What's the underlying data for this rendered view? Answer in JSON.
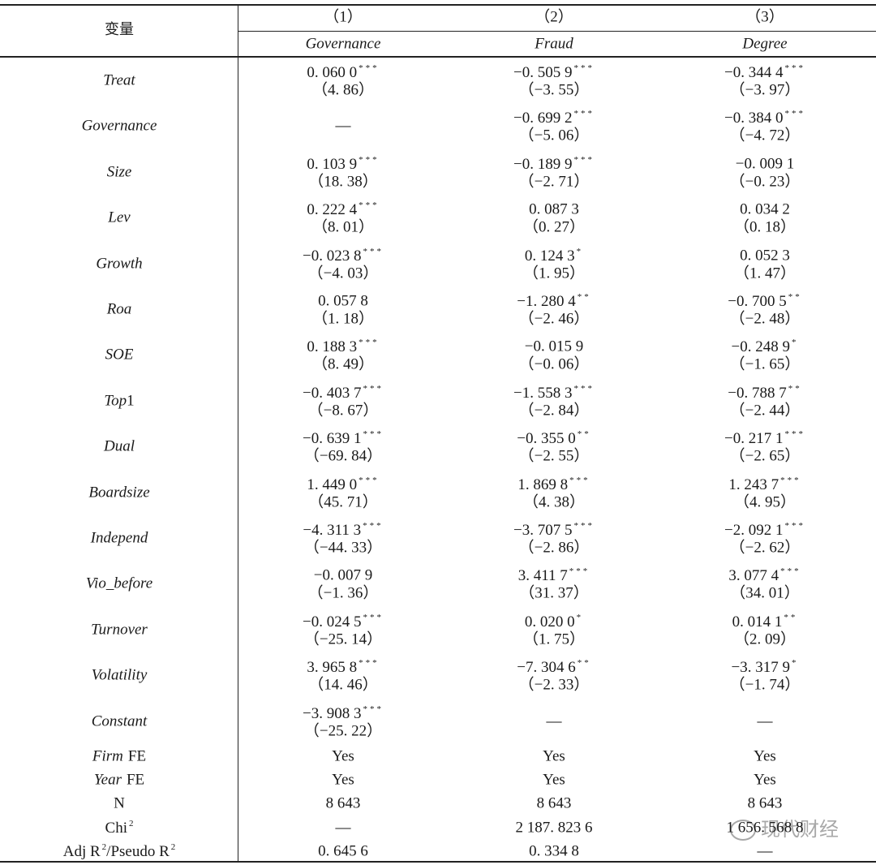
{
  "header": {
    "label": "变量",
    "columns": [
      {
        "number": "（1）",
        "name": "Governance"
      },
      {
        "number": "（2）",
        "name": "Fraud"
      },
      {
        "number": "（3）",
        "name": "Degree"
      }
    ]
  },
  "rows": [
    {
      "label": [
        {
          "text": "Treat",
          "style": "italic"
        }
      ],
      "cells": [
        {
          "coef": "0. 060 0",
          "stars": "***",
          "t": "（4. 86）"
        },
        {
          "coef": "−0. 505 9",
          "stars": "***",
          "t": "（−3. 55）"
        },
        {
          "coef": "−0. 344 4",
          "stars": "***",
          "t": "（−3. 97）"
        }
      ]
    },
    {
      "label": [
        {
          "text": "Governance",
          "style": "italic"
        }
      ],
      "cells": [
        {
          "coef": "—"
        },
        {
          "coef": "−0. 699 2",
          "stars": "***",
          "t": "（−5. 06）"
        },
        {
          "coef": "−0. 384 0",
          "stars": "***",
          "t": "（−4. 72）"
        }
      ]
    },
    {
      "label": [
        {
          "text": "Size",
          "style": "italic"
        }
      ],
      "cells": [
        {
          "coef": "0. 103 9",
          "stars": "***",
          "t": "（18. 38）"
        },
        {
          "coef": "−0. 189 9",
          "stars": "***",
          "t": "（−2. 71）"
        },
        {
          "coef": "−0. 009 1",
          "t": "（−0. 23）"
        }
      ]
    },
    {
      "label": [
        {
          "text": "Lev",
          "style": "italic"
        }
      ],
      "cells": [
        {
          "coef": "0. 222 4",
          "stars": "***",
          "t": "（8. 01）"
        },
        {
          "coef": "0. 087 3",
          "t": "（0. 27）"
        },
        {
          "coef": "0. 034 2",
          "t": "（0. 18）"
        }
      ]
    },
    {
      "label": [
        {
          "text": "Growth",
          "style": "italic"
        }
      ],
      "cells": [
        {
          "coef": "−0. 023 8",
          "stars": "***",
          "t": "（−4. 03）"
        },
        {
          "coef": "0. 124 3",
          "stars": "*",
          "t": "（1. 95）"
        },
        {
          "coef": "0. 052 3",
          "t": "（1. 47）"
        }
      ]
    },
    {
      "label": [
        {
          "text": "Roa",
          "style": "italic"
        }
      ],
      "cells": [
        {
          "coef": "0. 057 8",
          "t": "（1. 18）"
        },
        {
          "coef": "−1. 280 4",
          "stars": "**",
          "t": "（−2. 46）"
        },
        {
          "coef": "−0. 700 5",
          "stars": "**",
          "t": "（−2. 48）"
        }
      ]
    },
    {
      "label": [
        {
          "text": "SOE",
          "style": "italic"
        }
      ],
      "cells": [
        {
          "coef": "0. 188 3",
          "stars": "***",
          "t": "（8. 49）"
        },
        {
          "coef": "−0. 015 9",
          "t": "（−0. 06）"
        },
        {
          "coef": "−0. 248 9",
          "stars": "*",
          "t": "（−1. 65）"
        }
      ]
    },
    {
      "label": [
        {
          "text": "Top",
          "style": "italic"
        },
        {
          "text": "1",
          "style": "normal"
        }
      ],
      "cells": [
        {
          "coef": "−0. 403 7",
          "stars": "***",
          "t": "（−8. 67）"
        },
        {
          "coef": "−1. 558 3",
          "stars": "***",
          "t": "（−2. 84）"
        },
        {
          "coef": "−0. 788 7",
          "stars": "**",
          "t": "（−2. 44）"
        }
      ]
    },
    {
      "label": [
        {
          "text": "Dual",
          "style": "italic"
        }
      ],
      "cells": [
        {
          "coef": "−0. 639 1",
          "stars": "***",
          "t": "（−69. 84）"
        },
        {
          "coef": "−0. 355 0",
          "stars": "**",
          "t": "（−2. 55）"
        },
        {
          "coef": "−0. 217 1",
          "stars": "***",
          "t": "（−2. 65）"
        }
      ]
    },
    {
      "label": [
        {
          "text": "Boardsize",
          "style": "italic"
        }
      ],
      "cells": [
        {
          "coef": "1. 449 0",
          "stars": "***",
          "t": "（45. 71）"
        },
        {
          "coef": "1. 869 8",
          "stars": "***",
          "t": "（4. 38）"
        },
        {
          "coef": "1. 243 7",
          "stars": "***",
          "t": "（4. 95）"
        }
      ]
    },
    {
      "label": [
        {
          "text": "Independ",
          "style": "italic"
        }
      ],
      "cells": [
        {
          "coef": "−4. 311 3",
          "stars": "***",
          "t": "（−44. 33）"
        },
        {
          "coef": "−3. 707 5",
          "stars": "***",
          "t": "（−2. 86）"
        },
        {
          "coef": "−2. 092 1",
          "stars": "***",
          "t": "（−2. 62）"
        }
      ]
    },
    {
      "label": [
        {
          "text": "Vio_before",
          "style": "italic"
        }
      ],
      "cells": [
        {
          "coef": "−0. 007 9",
          "t": "（−1. 36）"
        },
        {
          "coef": "3. 411 7",
          "stars": "***",
          "t": "（31. 37）"
        },
        {
          "coef": "3. 077 4",
          "stars": "***",
          "t": "（34. 01）"
        }
      ]
    },
    {
      "label": [
        {
          "text": "Turnover",
          "style": "italic"
        }
      ],
      "cells": [
        {
          "coef": "−0. 024 5",
          "stars": "***",
          "t": "（−25. 14）"
        },
        {
          "coef": "0. 020 0",
          "stars": "*",
          "t": "（1. 75）"
        },
        {
          "coef": "0. 014 1",
          "stars": "**",
          "t": "（2. 09）"
        }
      ]
    },
    {
      "label": [
        {
          "text": "Volatility",
          "style": "italic"
        }
      ],
      "cells": [
        {
          "coef": "3. 965 8",
          "stars": "***",
          "t": "（14. 46）"
        },
        {
          "coef": "−7. 304 6",
          "stars": "**",
          "t": "（−2. 33）"
        },
        {
          "coef": "−3. 317 9",
          "stars": "*",
          "t": "（−1. 74）"
        }
      ]
    },
    {
      "label": [
        {
          "text": "Constant",
          "style": "italic"
        }
      ],
      "cells": [
        {
          "coef": "−3. 908 3",
          "stars": "***",
          "t": "（−25. 22）"
        },
        {
          "coef": "—"
        },
        {
          "coef": "—"
        }
      ]
    },
    {
      "label": [
        {
          "text": "Firm",
          "style": "italic"
        },
        {
          "text": "FE",
          "style": "normal"
        }
      ],
      "cells": [
        {
          "coef": "Yes"
        },
        {
          "coef": "Yes"
        },
        {
          "coef": "Yes"
        }
      ]
    },
    {
      "label": [
        {
          "text": "Year",
          "style": "italic"
        },
        {
          "text": "FE",
          "style": "normal"
        }
      ],
      "cells": [
        {
          "coef": "Yes"
        },
        {
          "coef": "Yes"
        },
        {
          "coef": "Yes"
        }
      ]
    },
    {
      "label": [
        {
          "text": "N",
          "style": "normal"
        }
      ],
      "cells": [
        {
          "coef": "8 643"
        },
        {
          "coef": "8 643"
        },
        {
          "coef": "8 643"
        }
      ]
    },
    {
      "label": [
        {
          "text": "Chi",
          "style": "normal"
        },
        {
          "text": "2",
          "style": "sup"
        }
      ],
      "cells": [
        {
          "coef": "—"
        },
        {
          "coef": "2 187. 823 6"
        },
        {
          "coef": "1 656. 568 8"
        }
      ]
    },
    {
      "label": [
        {
          "text": "Adj R",
          "style": "normal"
        },
        {
          "text": "2",
          "style": "sup"
        },
        {
          "text": "/Pseudo R",
          "style": "normal"
        },
        {
          "text": "2",
          "style": "sup"
        }
      ],
      "cells": [
        {
          "coef": "0. 645 6"
        },
        {
          "coef": "0. 334 8"
        },
        {
          "coef": "—"
        }
      ]
    }
  ],
  "watermark": "现代财经"
}
